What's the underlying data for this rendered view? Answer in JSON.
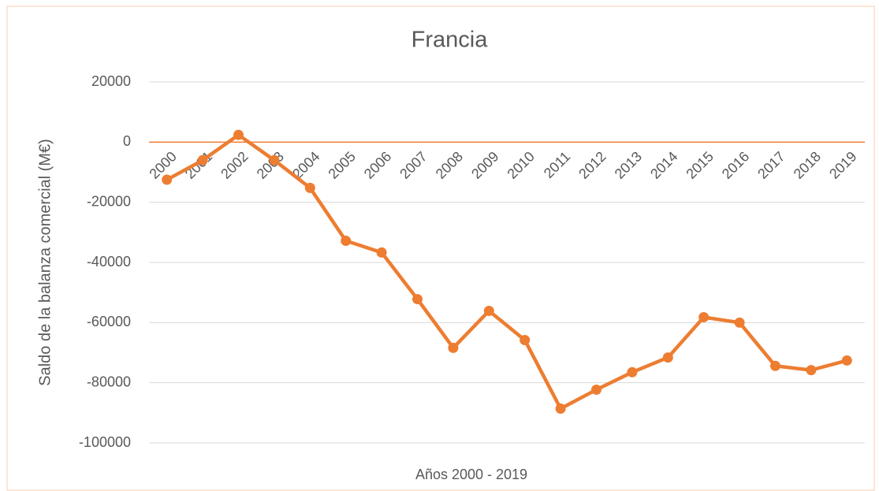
{
  "chart_data": {
    "type": "line",
    "title": "Francia",
    "xlabel": "Años 2000 - 2019",
    "ylabel": "Saldo de la balanza comercial (M€)",
    "categories": [
      "2000",
      "2001",
      "2002",
      "2003",
      "2004",
      "2005",
      "2006",
      "2007",
      "2008",
      "2009",
      "2010",
      "2011",
      "2012",
      "2013",
      "2014",
      "2015",
      "2016",
      "2017",
      "2018",
      "2019"
    ],
    "series": [
      {
        "name": "Francia",
        "color": "#ed7d31",
        "values": [
          -12500,
          -6000,
          2400,
          -6000,
          -15200,
          -32800,
          -36700,
          -52200,
          -68400,
          -56100,
          -65800,
          -88600,
          -82300,
          -76500,
          -71600,
          -58200,
          -60000,
          -74400,
          -75800,
          -72600
        ]
      }
    ],
    "ylim": [
      -100000,
      20000
    ],
    "yticks": [
      -100000,
      -80000,
      -60000,
      -40000,
      -20000,
      0,
      20000
    ],
    "grid": true
  }
}
